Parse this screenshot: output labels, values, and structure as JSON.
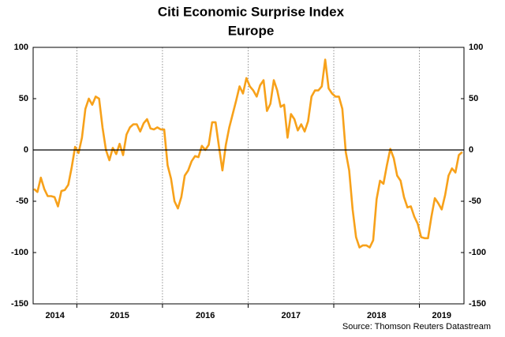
{
  "chart_data": {
    "type": "line",
    "title": "Citi Economic Surprise Index",
    "subtitle": "Europe",
    "source": "Source: Thomson Reuters Datastream",
    "color": "#f7a11a",
    "x": [
      2014.5,
      2014.54,
      2014.58,
      2014.62,
      2014.66,
      2014.7,
      2014.74,
      2014.78,
      2014.82,
      2014.86,
      2014.9,
      2014.94,
      2014.98,
      2015.02,
      2015.06,
      2015.1,
      2015.14,
      2015.18,
      2015.22,
      2015.26,
      2015.3,
      2015.34,
      2015.38,
      2015.42,
      2015.46,
      2015.5,
      2015.54,
      2015.58,
      2015.62,
      2015.66,
      2015.7,
      2015.74,
      2015.78,
      2015.82,
      2015.86,
      2015.9,
      2015.94,
      2015.98,
      2016.02,
      2016.06,
      2016.1,
      2016.14,
      2016.18,
      2016.22,
      2016.26,
      2016.3,
      2016.34,
      2016.38,
      2016.42,
      2016.46,
      2016.5,
      2016.54,
      2016.58,
      2016.62,
      2016.66,
      2016.7,
      2016.74,
      2016.78,
      2016.82,
      2016.86,
      2016.9,
      2016.94,
      2016.98,
      2017.02,
      2017.06,
      2017.1,
      2017.14,
      2017.18,
      2017.22,
      2017.26,
      2017.3,
      2017.34,
      2017.38,
      2017.42,
      2017.46,
      2017.5,
      2017.54,
      2017.58,
      2017.62,
      2017.66,
      2017.7,
      2017.74,
      2017.78,
      2017.82,
      2017.86,
      2017.9,
      2017.94,
      2017.98,
      2018.02,
      2018.06,
      2018.1,
      2018.14,
      2018.18,
      2018.22,
      2018.26,
      2018.3,
      2018.34,
      2018.38,
      2018.42,
      2018.46,
      2018.5,
      2018.54,
      2018.58,
      2018.62,
      2018.66,
      2018.7,
      2018.74,
      2018.78,
      2018.82,
      2018.86,
      2018.9,
      2018.94,
      2018.98,
      2019.02,
      2019.06,
      2019.1,
      2019.14,
      2019.18,
      2019.22,
      2019.26,
      2019.3,
      2019.34,
      2019.38,
      2019.42,
      2019.46,
      2019.5
    ],
    "values": [
      -38,
      -41,
      -27,
      -38,
      -45,
      -45,
      -46,
      -55,
      -40,
      -39,
      -34,
      -17,
      3,
      -3,
      12,
      40,
      50,
      44,
      52,
      50,
      22,
      0,
      -10,
      2,
      -4,
      6,
      -5,
      15,
      22,
      25,
      25,
      18,
      26,
      30,
      21,
      20,
      22,
      20,
      20,
      -15,
      -28,
      -50,
      -57,
      -46,
      -25,
      -20,
      -11,
      -6,
      -7,
      4,
      0,
      5,
      27,
      27,
      3,
      -20,
      5,
      22,
      35,
      48,
      62,
      55,
      70,
      62,
      58,
      52,
      63,
      68,
      38,
      45,
      68,
      58,
      42,
      44,
      12,
      35,
      30,
      19,
      25,
      18,
      28,
      52,
      58,
      58,
      62,
      88,
      60,
      55,
      52,
      52,
      40,
      -2,
      -20,
      -58,
      -85,
      -95,
      -93,
      -93,
      -95,
      -88,
      -48,
      -30,
      -33,
      -15,
      1,
      -8,
      -25,
      -30,
      -46,
      -56,
      -55,
      -65,
      -72,
      -85,
      -86,
      -86,
      -65,
      -47,
      -52,
      -58,
      -44,
      -25,
      -18,
      -22,
      -5,
      -2
    ],
    "xlim": [
      2014.49,
      2019.52
    ],
    "xticks": [
      2015,
      2016,
      2017,
      2018,
      2019
    ],
    "x_labels": [
      "2014",
      "2015",
      "2016",
      "2017",
      "2018",
      "2019"
    ],
    "ylim": [
      -150,
      100
    ],
    "yticks": [
      -150,
      -100,
      -50,
      0,
      50,
      100
    ],
    "y2lim": [
      -150,
      100
    ],
    "y2ticks": [
      -150,
      -100,
      -50,
      0,
      50,
      100
    ],
    "zero_line": true,
    "grid_x": true
  }
}
